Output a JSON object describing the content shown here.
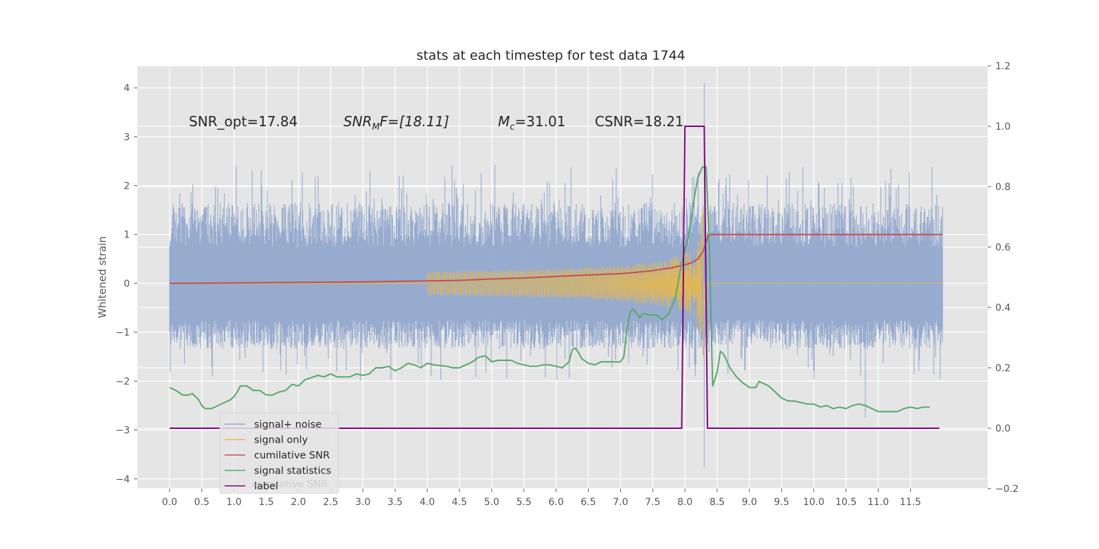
{
  "chart_data": {
    "type": "line",
    "title": "stats at each timestep for test data 1744",
    "ylabel": "Whitened strain",
    "xlim": [
      -0.5,
      12.7
    ],
    "ylim": [
      -4.2,
      4.45
    ],
    "y2lim": [
      -0.2,
      1.2
    ],
    "x_ticks": [
      "0.0",
      "0.5",
      "1.0",
      "1.5",
      "2.0",
      "2.5",
      "3.0",
      "3.5",
      "4.0",
      "4.5",
      "5.0",
      "5.5",
      "6.0",
      "6.5",
      "7.0",
      "7.5",
      "8.0",
      "8.5",
      "9.0",
      "9.5",
      "10.0",
      "10.5",
      "11.0",
      "11.5"
    ],
    "y_ticks": [
      "4",
      "3",
      "2",
      "1",
      "0",
      "−1",
      "−2",
      "−3",
      "−4"
    ],
    "y2_ticks": [
      "1.2",
      "1.0",
      "0.8",
      "0.6",
      "0.4",
      "0.2",
      "0.0",
      "−0.2"
    ],
    "grid": true,
    "annotations": {
      "snr_opt": "SNR_opt=17.84",
      "snr_mf_main": "SNR",
      "snr_mf_sub": "M",
      "snr_mf_rest": "F=[18.11]",
      "mc_main": "M",
      "mc_sub": "c",
      "mc_rest": "=31.01",
      "csnr": "CSNR=18.21"
    },
    "legend": {
      "placement": "lower-left",
      "entries": [
        "signal+ noise",
        "signal only",
        "cumilative SNR",
        "signal statistics",
        "label"
      ],
      "ghost_text": "cumilative SNR"
    },
    "series": [
      {
        "name": "signal+ noise",
        "axis": "left",
        "color": "#92a8cd",
        "noise": {
          "t_start": 0.0,
          "t_end": 12.0,
          "typical_range": [
            -1.6,
            2.45
          ],
          "outliers": [
            [
              8.3,
              4.1
            ],
            [
              8.3,
              -3.75
            ],
            [
              10.8,
              -2.75
            ]
          ]
        }
      },
      {
        "name": "signal only",
        "axis": "left",
        "color": "#e8b84a",
        "chirp": {
          "t_start": 0.0,
          "t_merge": 8.3,
          "t_end": 12.0,
          "peak_amplitude": 3.1
        }
      },
      {
        "name": "cumilative SNR",
        "axis": "left",
        "color": "#c44e52",
        "points": [
          [
            0.0,
            0.0
          ],
          [
            1.0,
            0.01
          ],
          [
            2.0,
            0.02
          ],
          [
            3.0,
            0.03
          ],
          [
            4.0,
            0.05
          ],
          [
            4.5,
            0.06
          ],
          [
            5.0,
            0.09
          ],
          [
            5.5,
            0.11
          ],
          [
            6.0,
            0.14
          ],
          [
            6.5,
            0.17
          ],
          [
            7.0,
            0.2
          ],
          [
            7.2,
            0.22
          ],
          [
            7.5,
            0.26
          ],
          [
            7.8,
            0.32
          ],
          [
            8.0,
            0.38
          ],
          [
            8.1,
            0.42
          ],
          [
            8.2,
            0.5
          ],
          [
            8.28,
            0.65
          ],
          [
            8.33,
            0.85
          ],
          [
            8.36,
            1.0
          ],
          [
            12.0,
            1.0
          ]
        ]
      },
      {
        "name": "signal statistics",
        "axis": "right",
        "color": "#55a868",
        "points": [
          [
            0.0,
            0.135
          ],
          [
            0.1,
            0.125
          ],
          [
            0.2,
            0.11
          ],
          [
            0.3,
            0.11
          ],
          [
            0.35,
            0.115
          ],
          [
            0.45,
            0.095
          ],
          [
            0.5,
            0.075
          ],
          [
            0.55,
            0.065
          ],
          [
            0.65,
            0.065
          ],
          [
            0.75,
            0.075
          ],
          [
            0.85,
            0.085
          ],
          [
            0.95,
            0.095
          ],
          [
            1.0,
            0.105
          ],
          [
            1.05,
            0.12
          ],
          [
            1.1,
            0.14
          ],
          [
            1.2,
            0.14
          ],
          [
            1.3,
            0.125
          ],
          [
            1.4,
            0.125
          ],
          [
            1.5,
            0.11
          ],
          [
            1.6,
            0.11
          ],
          [
            1.7,
            0.12
          ],
          [
            1.8,
            0.125
          ],
          [
            1.9,
            0.145
          ],
          [
            2.0,
            0.14
          ],
          [
            2.1,
            0.16
          ],
          [
            2.3,
            0.175
          ],
          [
            2.4,
            0.17
          ],
          [
            2.5,
            0.18
          ],
          [
            2.6,
            0.17
          ],
          [
            2.8,
            0.17
          ],
          [
            2.9,
            0.18
          ],
          [
            3.0,
            0.175
          ],
          [
            3.1,
            0.18
          ],
          [
            3.2,
            0.2
          ],
          [
            3.3,
            0.2
          ],
          [
            3.4,
            0.205
          ],
          [
            3.5,
            0.19
          ],
          [
            3.6,
            0.2
          ],
          [
            3.7,
            0.215
          ],
          [
            3.8,
            0.21
          ],
          [
            3.9,
            0.2
          ],
          [
            4.0,
            0.215
          ],
          [
            4.1,
            0.21
          ],
          [
            4.3,
            0.205
          ],
          [
            4.4,
            0.2
          ],
          [
            4.5,
            0.2
          ],
          [
            4.7,
            0.22
          ],
          [
            4.8,
            0.235
          ],
          [
            4.9,
            0.24
          ],
          [
            5.0,
            0.22
          ],
          [
            5.1,
            0.225
          ],
          [
            5.2,
            0.225
          ],
          [
            5.3,
            0.225
          ],
          [
            5.4,
            0.215
          ],
          [
            5.5,
            0.21
          ],
          [
            5.6,
            0.205
          ],
          [
            5.7,
            0.205
          ],
          [
            5.8,
            0.21
          ],
          [
            5.9,
            0.21
          ],
          [
            6.0,
            0.205
          ],
          [
            6.1,
            0.2
          ],
          [
            6.2,
            0.22
          ],
          [
            6.25,
            0.26
          ],
          [
            6.3,
            0.265
          ],
          [
            6.35,
            0.25
          ],
          [
            6.4,
            0.23
          ],
          [
            6.5,
            0.215
          ],
          [
            6.6,
            0.21
          ],
          [
            6.7,
            0.22
          ],
          [
            6.8,
            0.22
          ],
          [
            6.9,
            0.22
          ],
          [
            7.0,
            0.22
          ],
          [
            7.05,
            0.235
          ],
          [
            7.1,
            0.33
          ],
          [
            7.15,
            0.385
          ],
          [
            7.2,
            0.395
          ],
          [
            7.3,
            0.365
          ],
          [
            7.35,
            0.38
          ],
          [
            7.45,
            0.375
          ],
          [
            7.55,
            0.375
          ],
          [
            7.65,
            0.36
          ],
          [
            7.75,
            0.38
          ],
          [
            7.85,
            0.43
          ],
          [
            7.95,
            0.55
          ],
          [
            8.05,
            0.63
          ],
          [
            8.15,
            0.77
          ],
          [
            8.2,
            0.83
          ],
          [
            8.27,
            0.865
          ],
          [
            8.33,
            0.865
          ],
          [
            8.38,
            0.6
          ],
          [
            8.43,
            0.14
          ],
          [
            8.5,
            0.185
          ],
          [
            8.55,
            0.255
          ],
          [
            8.6,
            0.245
          ],
          [
            8.7,
            0.2
          ],
          [
            8.8,
            0.17
          ],
          [
            8.9,
            0.15
          ],
          [
            9.0,
            0.135
          ],
          [
            9.1,
            0.135
          ],
          [
            9.15,
            0.155
          ],
          [
            9.3,
            0.14
          ],
          [
            9.5,
            0.1
          ],
          [
            9.6,
            0.09
          ],
          [
            9.7,
            0.09
          ],
          [
            9.8,
            0.085
          ],
          [
            9.9,
            0.08
          ],
          [
            10.0,
            0.08
          ],
          [
            10.1,
            0.07
          ],
          [
            10.2,
            0.075
          ],
          [
            10.3,
            0.065
          ],
          [
            10.4,
            0.07
          ],
          [
            10.5,
            0.065
          ],
          [
            10.6,
            0.075
          ],
          [
            10.7,
            0.08
          ],
          [
            10.8,
            0.075
          ],
          [
            10.9,
            0.065
          ],
          [
            11.0,
            0.055
          ],
          [
            11.1,
            0.055
          ],
          [
            11.3,
            0.055
          ],
          [
            11.4,
            0.065
          ],
          [
            11.5,
            0.07
          ],
          [
            11.6,
            0.065
          ],
          [
            11.7,
            0.07
          ],
          [
            11.8,
            0.07
          ]
        ]
      },
      {
        "name": "label",
        "axis": "right",
        "color": "#800080",
        "points": [
          [
            0.0,
            0.0
          ],
          [
            7.95,
            0.0
          ],
          [
            8.0,
            1.0
          ],
          [
            8.3,
            1.0
          ],
          [
            8.35,
            0.0
          ],
          [
            11.95,
            0.0
          ]
        ]
      }
    ]
  }
}
